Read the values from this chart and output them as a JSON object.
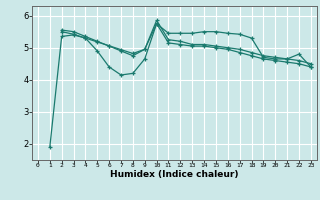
{
  "background_color": "#cce8e8",
  "grid_color": "#ffffff",
  "line_color": "#1a7a6e",
  "xlabel": "Humidex (Indice chaleur)",
  "ylim": [
    1.5,
    6.3
  ],
  "xlim": [
    -0.5,
    23.5
  ],
  "yticks": [
    2,
    3,
    4,
    5,
    6
  ],
  "xticks": [
    0,
    1,
    2,
    3,
    4,
    5,
    6,
    7,
    8,
    9,
    10,
    11,
    12,
    13,
    14,
    15,
    16,
    17,
    18,
    19,
    20,
    21,
    22,
    23
  ],
  "series": [
    {
      "x": [
        1,
        2,
        3,
        4,
        5,
        6,
        7,
        8,
        9,
        10,
        11,
        12,
        13,
        14,
        15,
        16,
        17,
        18,
        19,
        20,
        21,
        22,
        23
      ],
      "y": [
        1.9,
        5.35,
        5.4,
        5.3,
        4.9,
        4.4,
        4.15,
        4.2,
        4.65,
        5.75,
        5.45,
        5.45,
        5.45,
        5.5,
        5.5,
        5.45,
        5.42,
        5.3,
        4.7,
        4.65,
        4.65,
        4.8,
        4.4
      ]
    },
    {
      "x": [
        2,
        3,
        4,
        5,
        6,
        7,
        8,
        9,
        10,
        11,
        12,
        13,
        14,
        15,
        16,
        17,
        18,
        19,
        20,
        21,
        22,
        23
      ],
      "y": [
        5.55,
        5.5,
        5.35,
        5.2,
        5.05,
        4.9,
        4.75,
        4.95,
        5.85,
        5.25,
        5.2,
        5.1,
        5.1,
        5.05,
        5.0,
        4.95,
        4.85,
        4.75,
        4.7,
        4.65,
        4.6,
        4.5
      ]
    },
    {
      "x": [
        2,
        3,
        4,
        5,
        6,
        7,
        8,
        9,
        10,
        11,
        12,
        13,
        14,
        15,
        16,
        17,
        18,
        19,
        20,
        21,
        22,
        23
      ],
      "y": [
        5.5,
        5.42,
        5.3,
        5.18,
        5.06,
        4.94,
        4.82,
        4.95,
        5.75,
        5.15,
        5.1,
        5.05,
        5.05,
        5.0,
        4.95,
        4.85,
        4.75,
        4.65,
        4.6,
        4.55,
        4.5,
        4.4
      ]
    }
  ]
}
